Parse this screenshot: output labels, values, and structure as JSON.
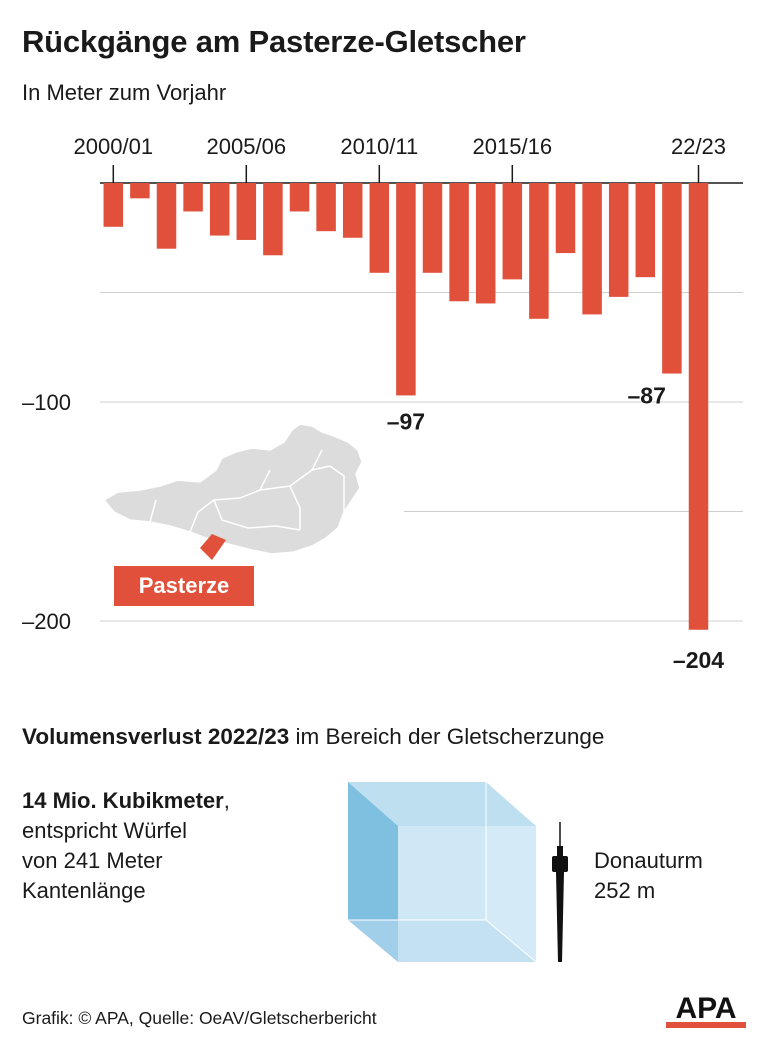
{
  "title": "Rückgänge am Pasterze-Gletscher",
  "subtitle": "In Meter zum Vorjahr",
  "chart_data": {
    "type": "bar",
    "categories": [
      "2000/01",
      "2001/02",
      "2002/03",
      "2003/04",
      "2004/05",
      "2005/06",
      "2006/07",
      "2007/08",
      "2008/09",
      "2009/10",
      "2010/11",
      "2011/12",
      "2012/13",
      "2013/14",
      "2014/15",
      "2015/16",
      "2016/17",
      "2017/18",
      "2018/19",
      "2019/20",
      "2020/21",
      "2021/22",
      "22/23"
    ],
    "values": [
      -20,
      -7,
      -30,
      -13,
      -24,
      -26,
      -33,
      -13,
      -22,
      -25,
      -41,
      -97,
      -41,
      -54,
      -55,
      -44,
      -62,
      -32,
      -60,
      -52,
      -43,
      -87,
      -204
    ],
    "x_tick_labels": [
      "2000/01",
      "2005/06",
      "2010/11",
      "2015/16",
      "22/23"
    ],
    "y_tick_labels": [
      "–100",
      "–200"
    ],
    "y_ticks": [
      -100,
      -200
    ],
    "ylim": [
      -210,
      0
    ],
    "data_labels": [
      {
        "category": "2011/12",
        "text": "–97"
      },
      {
        "category": "2021/22",
        "text": "–87"
      },
      {
        "category": "22/23",
        "text": "–204"
      }
    ],
    "bar_color": "#e0503a",
    "grid": true
  },
  "map": {
    "label": "Pasterze",
    "label_color": "#e0503a",
    "map_color": "#dcdcdc"
  },
  "volume": {
    "heading_bold": "Volumensverlust 2022/23",
    "heading_rest": " im Bereich der Gletscherzunge",
    "line1_bold": "14 Mio. Kubikmeter",
    "line1_rest": ",",
    "line2": "entspricht Würfel",
    "line3": "von 241 Meter",
    "line4": "Kantenlänge",
    "tower_name": "Donauturm",
    "tower_height": "252 m",
    "cube_color": "#7fbfe0"
  },
  "footer": "Grafik: © APA, Quelle: OeAV/Gletscherbericht",
  "logo_text": "APA"
}
